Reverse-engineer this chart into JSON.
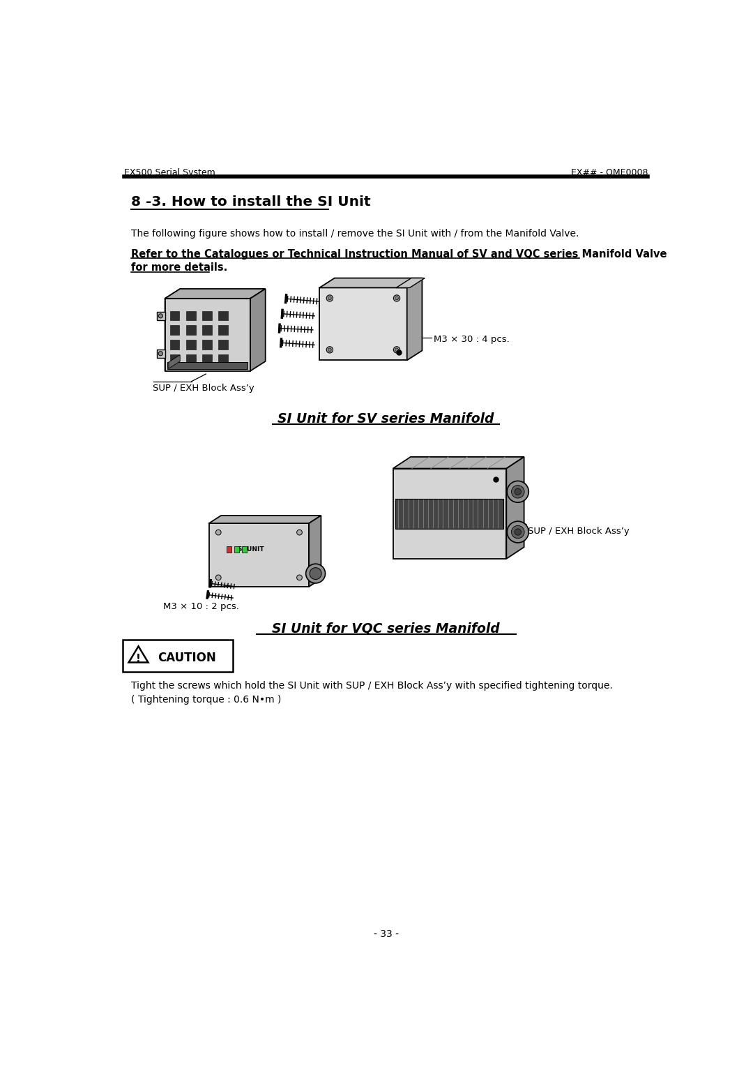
{
  "bg_color": "#ffffff",
  "header_left": "EX500 Serial System",
  "header_right": "EX## - OME0008",
  "section_title": "8 -3. How to install the SI Unit",
  "body_text1": "The following figure shows how to install / remove the SI Unit with / from the Manifold Valve.",
  "refer_line1": "Refer to the Catalogues or Technical Instruction Manual of SV and VQC series Manifold Valve",
  "refer_line2": "for more details.",
  "sv_label": "SI Unit for SV series Manifold",
  "vqc_label": "SI Unit for VQC series Manifold",
  "caption_sup_exh1": "SUP / EXH Block Ass’y",
  "caption_m3x30": "M3 × 30 : 4 pcs.",
  "caption_sup_exh2": "SUP / EXH Block Ass’y",
  "caption_m3x10": "M3 × 10 : 2 pcs.",
  "caution_title": "CAUTION",
  "caution_line1": "Tight the screws which hold the SI Unit with SUP / EXH Block Ass’y with specified tightening torque.",
  "caution_line2": "( Tightening torque : 0.6 N•m )",
  "page_number": "- 33 -",
  "line_color": "#000000",
  "text_color": "#000000"
}
